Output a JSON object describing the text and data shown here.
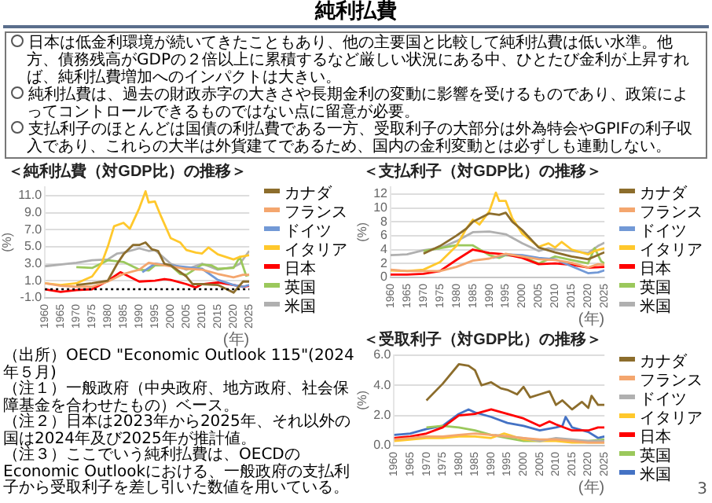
{
  "chart_data": [
    {
      "type": "line",
      "title": "＜純利払費（対GDP比）の推移＞",
      "xlabel": "(年)",
      "ylabel": "(%)",
      "xlim": [
        1960,
        2025
      ],
      "xticks": [
        1960,
        1965,
        1970,
        1975,
        1980,
        1985,
        1990,
        1995,
        2000,
        2005,
        2010,
        2015,
        2020,
        2025
      ],
      "ylim": [
        -1,
        12
      ],
      "yticks": [
        {
          "value": -1,
          "label": "-1.0"
        },
        {
          "value": 1,
          "label": "1.0"
        },
        {
          "value": 3,
          "label": "3.0"
        },
        {
          "value": 5,
          "label": "5.0"
        },
        {
          "value": 7,
          "label": "7.0"
        },
        {
          "value": 9,
          "label": "9.0"
        },
        {
          "value": 11,
          "label": "11.0"
        }
      ],
      "grid": "y",
      "legend": "right",
      "marker": "none",
      "line_style": "solid",
      "ref_lines": [
        {
          "axis": "y",
          "value": 0,
          "color": "#000000",
          "line_style": "dotted"
        }
      ],
      "series": [
        {
          "name": "カナダ",
          "color": "#8c6d2c",
          "x": [
            1970,
            1975,
            1980,
            1983,
            1985,
            1988,
            1990,
            1992,
            1994,
            1996,
            1998,
            2000,
            2005,
            2007,
            2010,
            2015,
            2020,
            2023,
            2025
          ],
          "values": [
            0.5,
            0.7,
            1.0,
            3.0,
            4.1,
            5.2,
            5.2,
            5.5,
            4.7,
            4.5,
            3.0,
            2.8,
            1.5,
            0.6,
            0.6,
            0.5,
            -0.4,
            0.9,
            0.9
          ]
        },
        {
          "name": "フランス",
          "color": "#f4a66e",
          "x": [
            1960,
            1965,
            1970,
            1975,
            1980,
            1985,
            1990,
            1993,
            1995,
            2000,
            2005,
            2010,
            2015,
            2020,
            2023,
            2025
          ],
          "values": [
            0.7,
            0.4,
            0.3,
            0.3,
            0.9,
            1.8,
            2.3,
            3.1,
            3.0,
            2.7,
            2.4,
            2.3,
            1.8,
            1.4,
            1.7,
            1.7
          ]
        },
        {
          "name": "ドイツ",
          "color": "#7299d6",
          "x": [
            1991,
            1995,
            2000,
            2005,
            2010,
            2015,
            2020,
            2023,
            2025
          ],
          "values": [
            2.0,
            3.0,
            2.8,
            2.6,
            2.4,
            1.1,
            0.5,
            0.3,
            0.5
          ]
        },
        {
          "name": "イタリア",
          "color": "#ffc82c",
          "x": [
            1960,
            1965,
            1970,
            1975,
            1978,
            1980,
            1982,
            1985,
            1987,
            1990,
            1992,
            1993,
            1995,
            1997,
            2000,
            2003,
            2005,
            2008,
            2010,
            2012,
            2015,
            2020,
            2022,
            2025
          ],
          "values": [
            0.7,
            0.5,
            0.7,
            1.5,
            3.0,
            5.0,
            7.4,
            7.8,
            7.1,
            9.5,
            11.5,
            10.2,
            10.3,
            8.5,
            6.0,
            5.5,
            4.6,
            4.3,
            4.2,
            4.9,
            4.1,
            3.5,
            3.8,
            4.0
          ]
        },
        {
          "name": "日本",
          "color": "#ff0000",
          "x": [
            1960,
            1965,
            1970,
            1975,
            1980,
            1984,
            1990,
            1995,
            1998,
            2000,
            2005,
            2008,
            2010,
            2015,
            2020,
            2023,
            2025
          ],
          "values": [
            0.0,
            -0.3,
            -0.1,
            0.0,
            1.0,
            2.0,
            0.9,
            1.0,
            1.2,
            1.1,
            0.6,
            0.2,
            0.6,
            0.8,
            0.5,
            0.3,
            0.4
          ]
        },
        {
          "name": "英国",
          "color": "#9bc85c",
          "x": [
            1970,
            1975,
            1980,
            1985,
            1990,
            1993,
            1995,
            2000,
            2003,
            2005,
            2010,
            2013,
            2015,
            2020,
            2022,
            2024,
            2025
          ],
          "values": [
            2.6,
            2.5,
            3.4,
            3.2,
            2.3,
            2.2,
            2.8,
            2.8,
            1.8,
            1.7,
            2.9,
            2.8,
            2.4,
            2.5,
            3.8,
            1.6,
            1.7
          ]
        },
        {
          "name": "米国",
          "color": "#b0b0b0",
          "x": [
            1960,
            1970,
            1975,
            1980,
            1983,
            1985,
            1990,
            1993,
            1995,
            2000,
            2005,
            2007,
            2010,
            2015,
            2020,
            2022,
            2025
          ],
          "values": [
            2.7,
            3.1,
            3.4,
            3.5,
            4.2,
            4.3,
            4.8,
            4.5,
            4.6,
            3.0,
            2.3,
            2.6,
            3.0,
            2.3,
            2.6,
            3.0,
            4.5
          ]
        }
      ],
      "annotations": [
        "純利払費",
        "日本は低金利環境が続いてきたこともあり、他の主要国と比較して純利払費は低い水準。他方、債務残高がGDPの２倍以上に累積するなど厳しい状況にある中、ひとたび金利が上昇すれば、純利払費増加へのインパクトは大きい。",
        "純利払費は、過去の財政赤字の大きさや長期金利の変動に影響を受けるものであり、政策によってコントロールできるものではない点に留意が必要。",
        "支払利子のほとんどは国債の利払費である一方、受取利子の大部分は外為特会やGPIFの利子収入であり、これらの大半は外貨建てであるため、国内の金利変動とは必ずしも連動しない。",
        "（出所）OECD \"Economic Outlook 115\"(2024年５月)",
        "（注１）一般政府（中央政府、地方政府、社会保障基金を合わせたもの）ベース。",
        "（注２）日本は2023年から2025年、それ以外の国は2024年及び2025年が推計値。",
        "（注３）ここでいう純利払費は、OECDのEconomic Outlookにおける、一般政府の支払利子から受取利子を差し引いた数値を用いている。"
      ]
    },
    {
      "type": "line",
      "title": "＜支払利子（対GDP比）の推移＞",
      "xlabel": "(年)",
      "ylabel": "(%)",
      "xlim": [
        1960,
        2025
      ],
      "xticks": [
        1960,
        1965,
        1970,
        1975,
        1980,
        1985,
        1990,
        1995,
        2000,
        2005,
        2010,
        2015,
        2020,
        2025
      ],
      "ylim": [
        0,
        13
      ],
      "yticks": [
        0,
        2,
        4,
        6,
        8,
        10,
        12
      ],
      "grid": "y",
      "legend": "right",
      "marker": "none",
      "line_style": "solid",
      "series": [
        {
          "name": "カナダ",
          "color": "#8c6d2c",
          "x": [
            1970,
            1975,
            1980,
            1983,
            1985,
            1990,
            1993,
            1995,
            1997,
            2000,
            2005,
            2010,
            2015,
            2020,
            2025
          ],
          "values": [
            3.4,
            4.5,
            6.0,
            7.0,
            8.0,
            9.2,
            9.0,
            9.3,
            8.0,
            6.8,
            4.3,
            3.6,
            3.0,
            2.6,
            3.6
          ]
        },
        {
          "name": "フランス",
          "color": "#f4a66e",
          "x": [
            1960,
            1965,
            1970,
            1975,
            1980,
            1985,
            1990,
            1995,
            2000,
            2005,
            2010,
            2015,
            2020,
            2023,
            2025
          ],
          "values": [
            1.1,
            0.9,
            0.9,
            0.9,
            1.5,
            2.4,
            2.7,
            3.4,
            3.0,
            2.6,
            2.5,
            2.1,
            1.4,
            1.9,
            1.8
          ]
        },
        {
          "name": "ドイツ",
          "color": "#7299d6",
          "x": [
            1991,
            1995,
            2000,
            2005,
            2010,
            2015,
            2020,
            2023,
            2025
          ],
          "values": [
            2.8,
            3.3,
            3.2,
            2.8,
            2.6,
            1.6,
            0.6,
            0.7,
            1.0
          ]
        },
        {
          "name": "イタリア",
          "color": "#ffc82c",
          "x": [
            1960,
            1965,
            1970,
            1975,
            1980,
            1983,
            1985,
            1987,
            1990,
            1992,
            1993,
            1995,
            1997,
            2000,
            2005,
            2008,
            2010,
            2012,
            2015,
            2020,
            2022,
            2025
          ],
          "values": [
            1.0,
            0.9,
            1.1,
            2.2,
            4.5,
            7.0,
            8.3,
            7.6,
            9.5,
            12.2,
            11.0,
            11.0,
            8.5,
            6.3,
            4.4,
            4.9,
            4.3,
            5.1,
            4.0,
            3.3,
            3.8,
            4.2
          ]
        },
        {
          "name": "日本",
          "color": "#ff0000",
          "x": [
            1960,
            1965,
            1970,
            1975,
            1980,
            1985,
            1990,
            1995,
            2000,
            2005,
            2010,
            2015,
            2020,
            2025
          ],
          "values": [
            0.4,
            0.4,
            0.5,
            0.9,
            2.5,
            4.0,
            3.5,
            3.3,
            2.8,
            1.9,
            2.0,
            1.8,
            1.4,
            1.5
          ]
        },
        {
          "name": "英国",
          "color": "#9bc85c",
          "x": [
            1970,
            1975,
            1980,
            1985,
            1990,
            1993,
            1995,
            2000,
            2005,
            2010,
            2015,
            2020,
            2022,
            2024,
            2025
          ],
          "values": [
            3.8,
            4.2,
            4.6,
            4.6,
            3.2,
            2.8,
            3.2,
            3.0,
            2.0,
            3.0,
            2.5,
            2.0,
            4.2,
            2.3,
            2.0
          ]
        },
        {
          "name": "米国",
          "color": "#b0b0b0",
          "x": [
            1960,
            1965,
            1970,
            1975,
            1980,
            1985,
            1990,
            1995,
            2000,
            2005,
            2008,
            2010,
            2015,
            2020,
            2023,
            2025
          ],
          "values": [
            3.2,
            3.3,
            3.9,
            4.2,
            5.2,
            6.5,
            6.6,
            6.2,
            4.9,
            3.8,
            4.2,
            4.0,
            3.8,
            3.5,
            4.5,
            5.0
          ]
        }
      ]
    },
    {
      "type": "line",
      "title": "＜受取利子（対GDP比）の推移＞",
      "xlabel": "(年)",
      "ylabel": "(%)",
      "xlim": [
        1960,
        2025
      ],
      "xticks": [
        1960,
        1965,
        1970,
        1975,
        1980,
        1985,
        1990,
        1995,
        2000,
        2005,
        2010,
        2015,
        2020,
        2025
      ],
      "ylim": [
        0,
        6
      ],
      "yticks": [
        {
          "value": 0,
          "label": "0.0"
        },
        {
          "value": 2,
          "label": "2.0"
        },
        {
          "value": 4,
          "label": "4.0"
        },
        {
          "value": 6,
          "label": "6.0"
        }
      ],
      "grid": "y",
      "legend": "right",
      "marker": "none",
      "line_style": "solid",
      "series": [
        {
          "name": "カナダ",
          "color": "#8c6d2c",
          "x": [
            1970,
            1975,
            1980,
            1983,
            1985,
            1987,
            1990,
            1993,
            1995,
            1998,
            2000,
            2002,
            2005,
            2008,
            2010,
            2012,
            2015,
            2018,
            2020,
            2021,
            2023,
            2025
          ],
          "values": [
            3.0,
            4.1,
            5.4,
            5.3,
            5.0,
            4.0,
            4.2,
            3.8,
            3.7,
            3.4,
            3.9,
            3.2,
            3.4,
            3.6,
            2.7,
            3.0,
            2.4,
            2.9,
            2.5,
            3.3,
            2.7,
            2.7
          ]
        },
        {
          "name": "フランス",
          "color": "#f4a66e",
          "x": [
            1960,
            1965,
            1970,
            1975,
            1980,
            1985,
            1990,
            1995,
            2000,
            2005,
            2010,
            2015,
            2020,
            2025
          ],
          "values": [
            0.4,
            0.5,
            0.6,
            0.6,
            0.7,
            0.8,
            0.7,
            0.6,
            0.5,
            0.4,
            0.4,
            0.3,
            0.2,
            0.2
          ]
        },
        {
          "name": "ドイツ",
          "color": "#b0b0b0",
          "x": [
            1991,
            1995,
            2000,
            2005,
            2010,
            2015,
            2020,
            2025
          ],
          "values": [
            0.7,
            0.6,
            0.5,
            0.3,
            0.5,
            0.4,
            0.3,
            0.3
          ]
        },
        {
          "name": "イタリア",
          "color": "#ffc82c",
          "x": [
            1960,
            1970,
            1975,
            1980,
            1985,
            1990,
            1994,
            2000,
            2005,
            2010,
            2015,
            2020,
            2025
          ],
          "values": [
            0.3,
            0.5,
            0.5,
            0.6,
            0.6,
            0.5,
            0.8,
            0.4,
            0.3,
            0.3,
            0.2,
            0.2,
            0.2
          ]
        },
        {
          "name": "日本",
          "color": "#ff0000",
          "x": [
            1960,
            1965,
            1970,
            1975,
            1980,
            1985,
            1990,
            1995,
            2000,
            2005,
            2008,
            2010,
            2015,
            2020,
            2023,
            2025
          ],
          "values": [
            0.5,
            0.6,
            0.8,
            1.2,
            2.0,
            2.1,
            2.4,
            2.1,
            1.8,
            1.3,
            1.6,
            1.4,
            1.0,
            1.0,
            1.2,
            1.2
          ]
        },
        {
          "name": "英国",
          "color": "#9bc85c",
          "x": [
            1970,
            1975,
            1980,
            1985,
            1990,
            1995,
            2000,
            2005,
            2010,
            2015,
            2020,
            2025
          ],
          "values": [
            1.2,
            1.3,
            1.2,
            1.0,
            0.7,
            0.5,
            0.3,
            0.3,
            0.4,
            0.3,
            0.3,
            0.4
          ]
        },
        {
          "name": "米国",
          "color": "#4472c4",
          "x": [
            1960,
            1965,
            1970,
            1975,
            1980,
            1983,
            1985,
            1990,
            1995,
            2000,
            2005,
            2010,
            2012,
            2013,
            2015,
            2020,
            2023,
            2025
          ],
          "values": [
            0.7,
            0.8,
            1.1,
            1.3,
            2.1,
            2.4,
            2.2,
            1.9,
            1.5,
            1.3,
            1.0,
            1.2,
            1.3,
            1.9,
            1.2,
            0.9,
            0.5,
            0.6
          ]
        }
      ],
      "annotations": [
        "3"
      ]
    }
  ]
}
